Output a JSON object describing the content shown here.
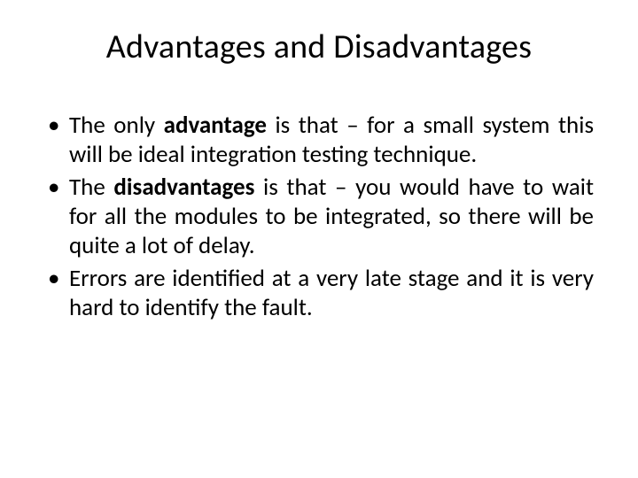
{
  "title": "Advantages and Disadvantages",
  "bullets": [
    {
      "pre": "The only ",
      "bold": "advantage",
      "post": " is that – for a small system this will be ideal integration testing technique."
    },
    {
      "pre": "The ",
      "bold": "disadvantages",
      "post": " is that – you would have to wait for all the modules to be integrated, so there will be quite a lot of delay."
    },
    {
      "pre": "",
      "bold": "",
      "post": "Errors are identified at a very late stage and it is very hard to identify the fault."
    }
  ],
  "colors": {
    "background": "#ffffff",
    "text": "#000000"
  },
  "typography": {
    "title_fontsize_pt": 38,
    "body_fontsize_pt": 27,
    "font_family": "Calibri"
  }
}
